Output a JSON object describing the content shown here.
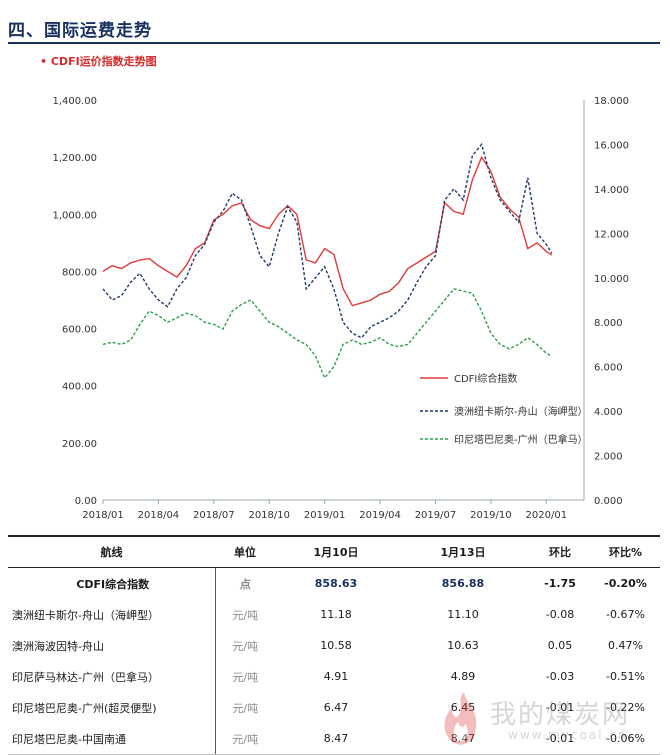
{
  "section_title": "四、国际运费走势",
  "subtitle": "• CDFI运价指数走势图",
  "chart_data": {
    "type": "line",
    "x_ticks": [
      "2018/01",
      "2018/04",
      "2018/07",
      "2018/10",
      "2019/01",
      "2019/04",
      "2019/07",
      "2019/10",
      "2020/01"
    ],
    "y_left": {
      "ticks": [
        "0.00",
        "200.00",
        "400.00",
        "600.00",
        "800.00",
        "1,000.00",
        "1,200.00",
        "1,400.00"
      ],
      "range": [
        0,
        1400
      ]
    },
    "y_right": {
      "ticks": [
        "0.000",
        "2.000",
        "4.000",
        "6.000",
        "8.000",
        "10.000",
        "12.000",
        "14.000",
        "16.000",
        "18.000"
      ],
      "range": [
        0,
        18
      ]
    },
    "x_range": [
      0,
      25
    ],
    "legend_position": "right-middle",
    "series": [
      {
        "name": "CDFI综合指数",
        "axis": "left",
        "color": "#e03a3a",
        "style": "solid",
        "x": [
          0,
          0.5,
          1,
          1.5,
          2,
          2.5,
          3,
          3.5,
          4,
          4.5,
          5,
          5.5,
          6,
          6.5,
          7,
          7.5,
          8,
          8.5,
          9,
          9.5,
          10,
          10.5,
          11,
          11.5,
          12,
          12.5,
          13,
          13.5,
          14,
          14.5,
          15,
          15.5,
          16,
          16.5,
          17,
          17.5,
          18,
          18.5,
          19,
          19.5,
          20,
          20.5,
          21,
          21.5,
          22,
          22.5,
          23,
          23.5,
          24,
          24.3
        ],
        "values": [
          800,
          820,
          810,
          830,
          840,
          845,
          820,
          800,
          780,
          820,
          880,
          900,
          980,
          1000,
          1030,
          1040,
          980,
          960,
          950,
          1000,
          1030,
          1000,
          840,
          830,
          880,
          860,
          740,
          680,
          690,
          700,
          720,
          730,
          760,
          810,
          830,
          850,
          870,
          1040,
          1010,
          1000,
          1120,
          1200,
          1150,
          1060,
          1020,
          990,
          880,
          900,
          870,
          857
        ]
      },
      {
        "name": "澳洲纽卡斯尔-舟山（海岬型）",
        "axis": "right",
        "color": "#1f3a6b",
        "style": "dashed",
        "x": [
          0,
          0.5,
          1,
          1.5,
          2,
          2.5,
          3,
          3.5,
          4,
          4.5,
          5,
          5.5,
          6,
          6.5,
          7,
          7.5,
          8,
          8.5,
          9,
          9.5,
          10,
          10.5,
          11,
          11.5,
          12,
          12.5,
          13,
          13.5,
          14,
          14.5,
          15,
          15.5,
          16,
          16.5,
          17,
          17.5,
          18,
          18.5,
          19,
          19.5,
          20,
          20.5,
          21,
          21.5,
          22,
          22.5,
          23,
          23.5,
          24,
          24.3
        ],
        "values": [
          9.5,
          9.0,
          9.2,
          9.8,
          10.2,
          9.5,
          9.0,
          8.7,
          9.5,
          10.0,
          11.0,
          11.5,
          12.5,
          13.0,
          13.8,
          13.5,
          12.3,
          11.0,
          10.5,
          12.0,
          13.2,
          12.5,
          9.5,
          10.0,
          10.5,
          9.5,
          8.0,
          7.5,
          7.3,
          7.8,
          8.0,
          8.2,
          8.5,
          9.0,
          9.8,
          10.5,
          11.0,
          13.5,
          14.0,
          13.5,
          15.5,
          16.0,
          14.5,
          13.5,
          13.0,
          12.5,
          14.5,
          12.0,
          11.5,
          11.1
        ]
      },
      {
        "name": "印尼塔巴尼奥-广州（巴拿马）",
        "axis": "right",
        "color": "#2aa04a",
        "style": "dashed",
        "x": [
          0,
          0.5,
          1,
          1.5,
          2,
          2.5,
          3,
          3.5,
          4,
          4.5,
          5,
          5.5,
          6,
          6.5,
          7,
          7.5,
          8,
          8.5,
          9,
          9.5,
          10,
          10.5,
          11,
          11.5,
          12,
          12.5,
          13,
          13.5,
          14,
          14.5,
          15,
          15.5,
          16,
          16.5,
          17,
          17.5,
          18,
          18.5,
          19,
          19.5,
          20,
          20.5,
          21,
          21.5,
          22,
          22.5,
          23,
          23.5,
          24,
          24.3
        ],
        "values": [
          7.0,
          7.1,
          7.0,
          7.2,
          7.9,
          8.5,
          8.3,
          8.0,
          8.2,
          8.4,
          8.3,
          8.0,
          7.9,
          7.7,
          8.5,
          8.8,
          9.0,
          8.5,
          8.0,
          7.8,
          7.5,
          7.2,
          7.0,
          6.5,
          5.5,
          6.0,
          7.0,
          7.2,
          7.0,
          7.1,
          7.3,
          7.0,
          6.9,
          7.0,
          7.5,
          8.0,
          8.5,
          9.0,
          9.5,
          9.4,
          9.3,
          8.5,
          7.5,
          7.0,
          6.8,
          7.0,
          7.3,
          7.0,
          6.6,
          6.47
        ]
      }
    ]
  },
  "table": {
    "headers": [
      "航线",
      "单位",
      "1月10日",
      "1月13日",
      "环比",
      "环比%"
    ],
    "rows": [
      [
        "CDFI综合指数",
        "点",
        "858.63",
        "856.88",
        "-1.75",
        "-0.20%"
      ],
      [
        "澳洲纽卡斯尔-舟山（海岬型）",
        "元/吨",
        "11.18",
        "11.10",
        "-0.08",
        "-0.67%"
      ],
      [
        "澳洲海波因特-舟山",
        "元/吨",
        "10.58",
        "10.63",
        "0.05",
        "0.47%"
      ],
      [
        "印尼萨马林达-广州（巴拿马）",
        "元/吨",
        "4.91",
        "4.89",
        "-0.03",
        "-0.51%"
      ],
      [
        "印尼塔巴尼奥-广州(超灵便型)",
        "元/吨",
        "6.47",
        "6.45",
        "-0.01",
        "-0.22%"
      ],
      [
        "印尼塔巴尼奥-中国南通",
        "元/吨",
        "8.47",
        "8.47",
        "-0.01",
        "-0.06%"
      ]
    ]
  },
  "watermark": {
    "text": "我的煤炭网",
    "url": "www.mycoal.cn"
  }
}
